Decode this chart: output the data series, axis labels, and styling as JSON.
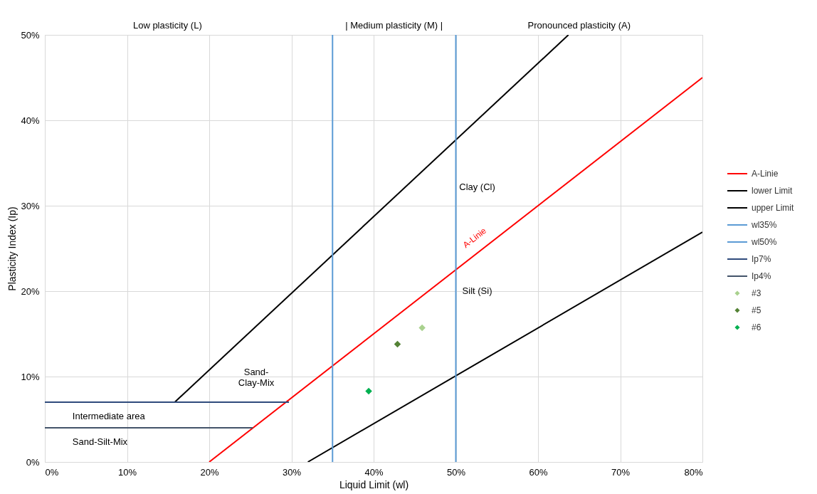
{
  "chart_data": {
    "type": "line",
    "xlabel": "Liquid Limit (wl)",
    "ylabel": "Plasticity Index (Ip)",
    "xlim": [
      0,
      80
    ],
    "ylim": [
      0,
      50
    ],
    "xticks": [
      {
        "value": 0,
        "label": "0%"
      },
      {
        "value": 10,
        "label": "10%"
      },
      {
        "value": 20,
        "label": "20%"
      },
      {
        "value": 30,
        "label": "30%"
      },
      {
        "value": 40,
        "label": "40%"
      },
      {
        "value": 50,
        "label": "50%"
      },
      {
        "value": 60,
        "label": "60%"
      },
      {
        "value": 70,
        "label": "70%"
      },
      {
        "value": 80,
        "label": "80%"
      }
    ],
    "yticks": [
      {
        "value": 0,
        "label": "0%"
      },
      {
        "value": 10,
        "label": "10%"
      },
      {
        "value": 20,
        "label": "20%"
      },
      {
        "value": 30,
        "label": "30%"
      },
      {
        "value": 40,
        "label": "40%"
      },
      {
        "value": 50,
        "label": "50%"
      }
    ],
    "grid": true,
    "legend": "right",
    "line_style": "solid",
    "series": [
      {
        "name": "A-Linie",
        "marker": "none",
        "color": "#ff0000",
        "x": [
          20,
          80
        ],
        "values": [
          0,
          45
        ]
      },
      {
        "name": "lower Limit",
        "marker": "none",
        "color": "#000000",
        "x": [
          32,
          80
        ],
        "values": [
          0,
          26.9
        ]
      },
      {
        "name": "upper Limit",
        "marker": "none",
        "color": "#000000",
        "x": [
          15.8,
          63.7
        ],
        "values": [
          7,
          50
        ]
      },
      {
        "name": "wl35%",
        "marker": "none",
        "color": "#5b9bd5",
        "x": [
          35,
          35
        ],
        "values": [
          0,
          50
        ]
      },
      {
        "name": "wl50%",
        "marker": "none",
        "color": "#5b9bd5",
        "x": [
          50,
          50
        ],
        "values": [
          0,
          50
        ]
      },
      {
        "name": "Ip7%",
        "marker": "none",
        "color": "#2f4b7c",
        "x": [
          0,
          29.7
        ],
        "values": [
          7,
          7
        ]
      },
      {
        "name": "Ip4%",
        "marker": "none",
        "color": "#44546a",
        "x": [
          0,
          25.3
        ],
        "values": [
          4,
          4
        ]
      },
      {
        "name": "#3",
        "type": "scatter",
        "marker": "diamond",
        "color": "#a9d18e",
        "x": [
          45.9
        ],
        "values": [
          15.7
        ]
      },
      {
        "name": "#5",
        "type": "scatter",
        "marker": "diamond",
        "color": "#548235",
        "x": [
          42.9
        ],
        "values": [
          13.8
        ]
      },
      {
        "name": "#6",
        "type": "scatter",
        "marker": "diamond",
        "color": "#00b050",
        "x": [
          39.4
        ],
        "values": [
          8.3
        ]
      }
    ],
    "annotations": [
      "Low plasticity (L)",
      "| Medium plasticity (M) |",
      "Pronounced plasticity (A)",
      "Clay (Cl)",
      "Silt (Si)",
      "Sand-\nClay-Mix",
      "Intermediate area",
      "Sand-Silt-Mix",
      "A-Linie"
    ]
  }
}
